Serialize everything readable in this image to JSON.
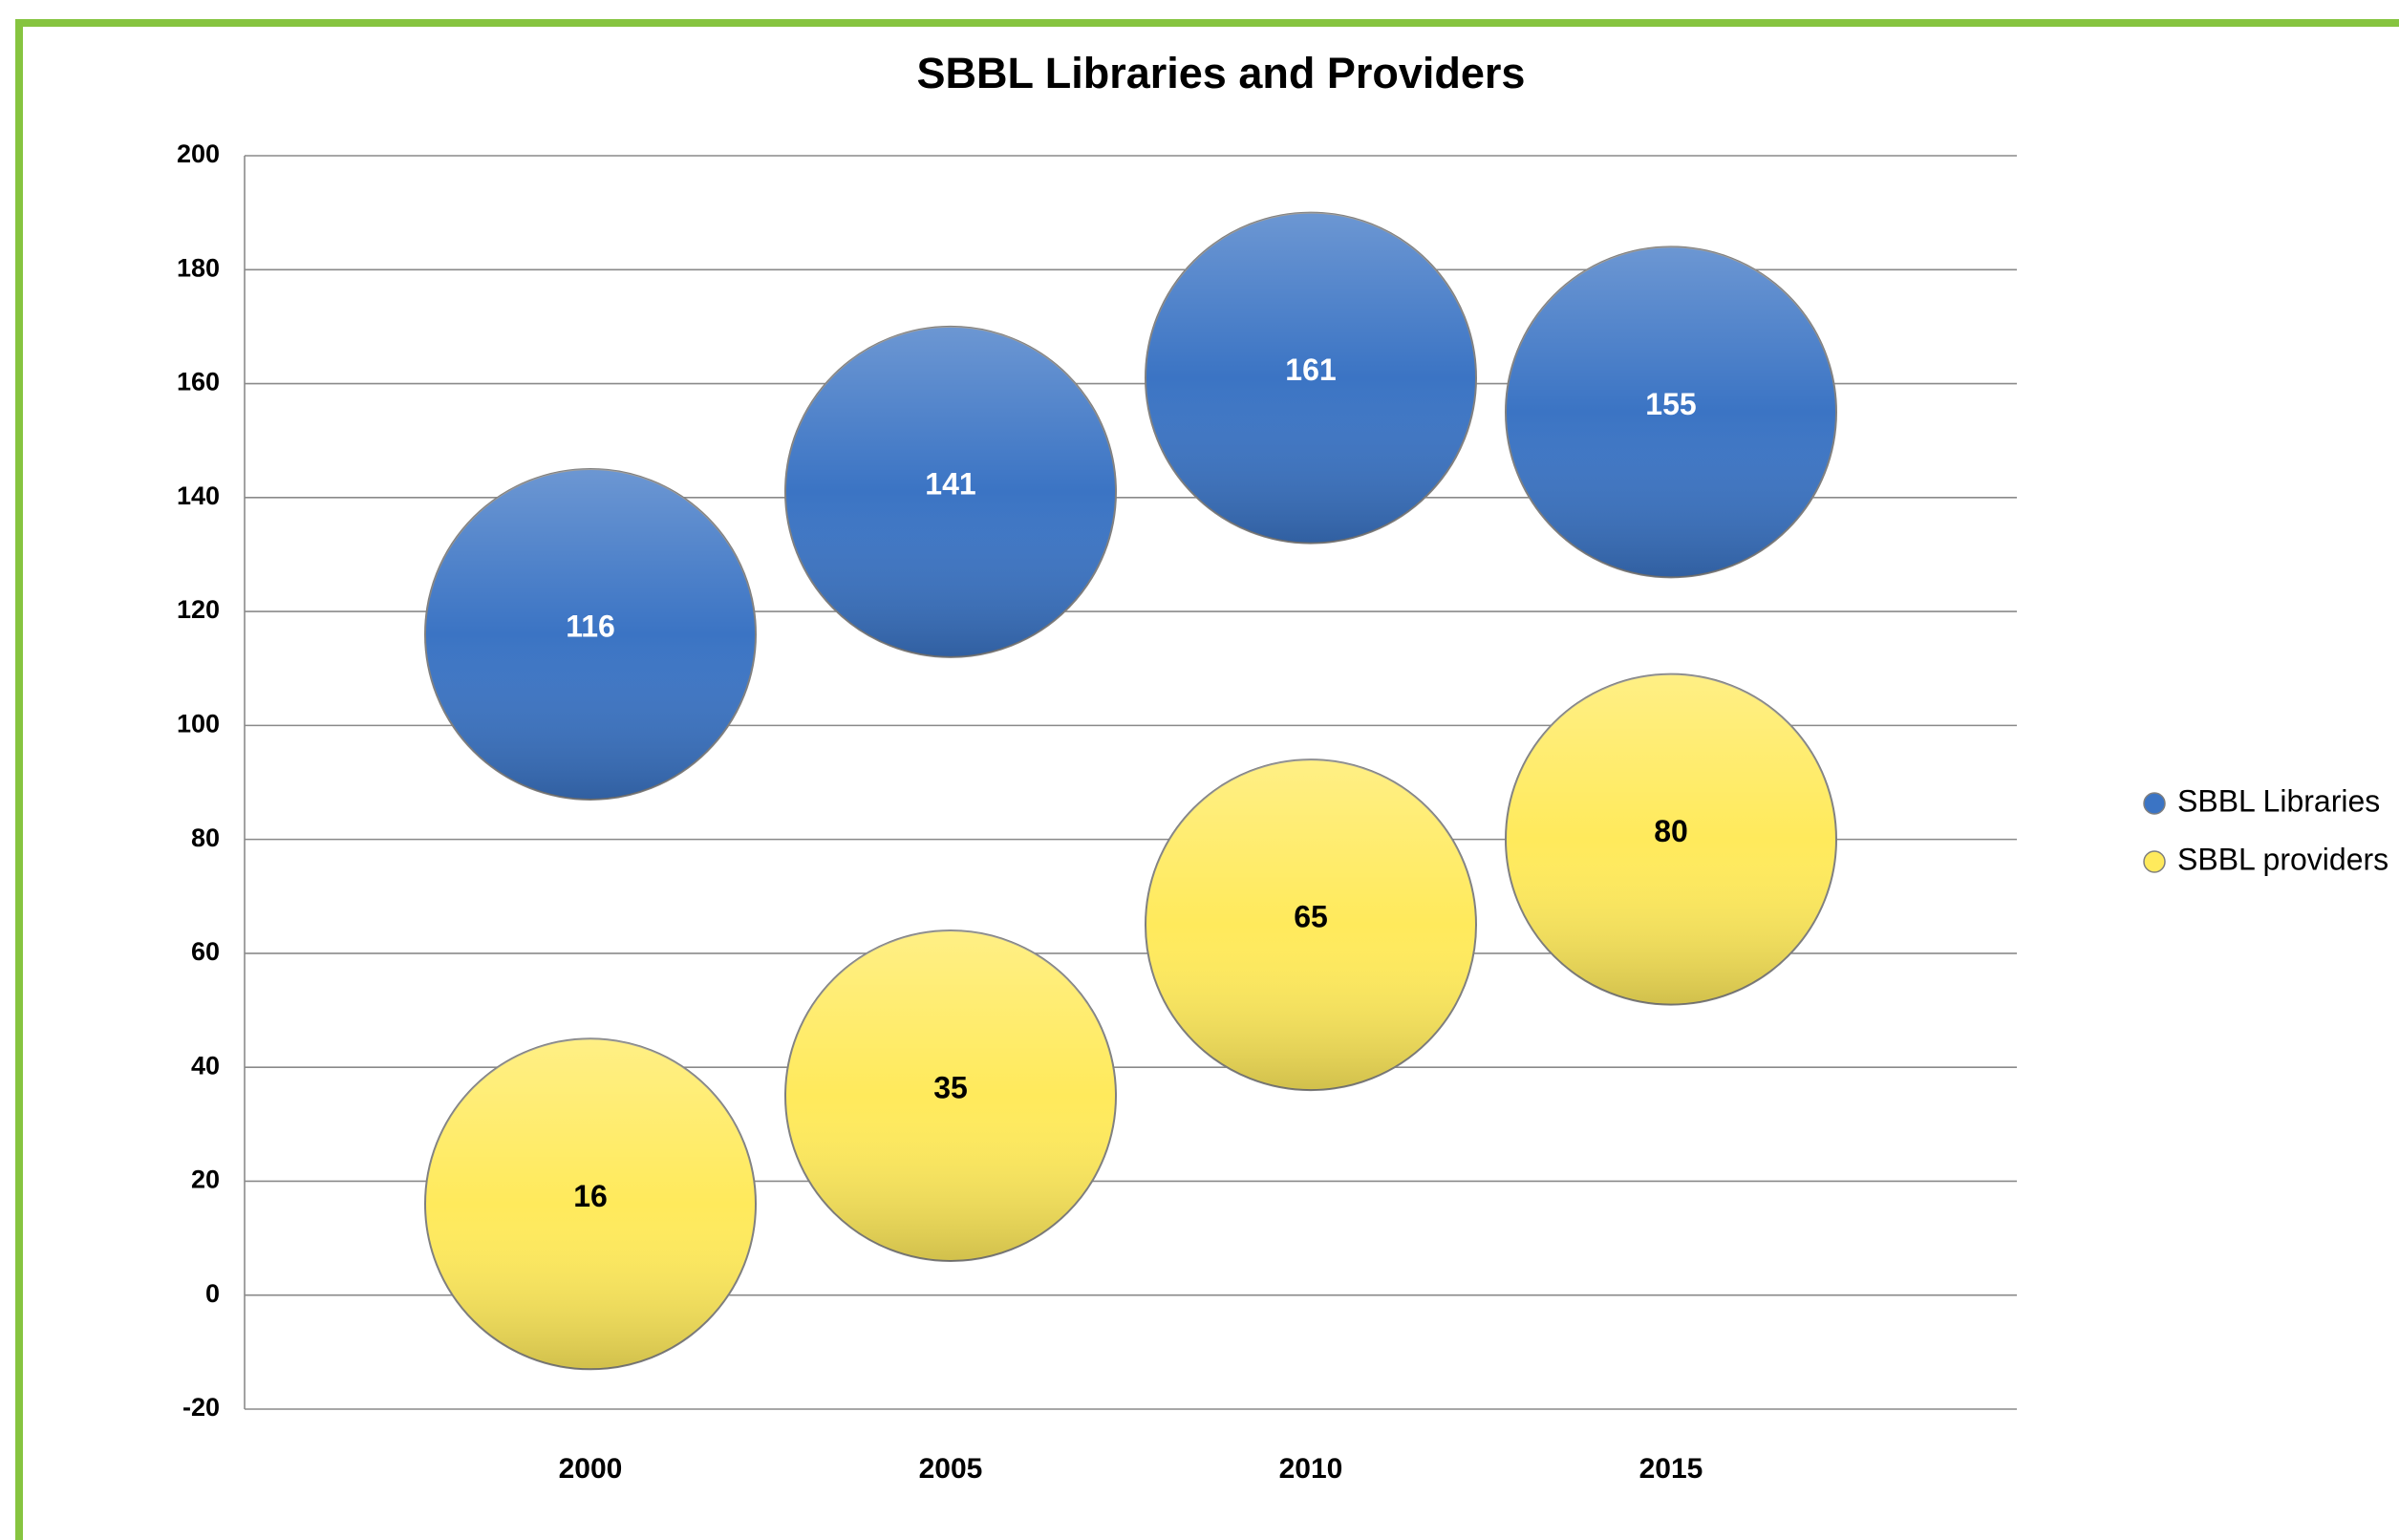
{
  "chart_data": {
    "type": "bubble",
    "title": "SBBL Libraries and Providers",
    "categories": [
      "2000",
      "2005",
      "2010",
      "2015"
    ],
    "series": [
      {
        "name": "SBBL Libraries",
        "color": "#3b74c4",
        "values": [
          116,
          141,
          161,
          155
        ]
      },
      {
        "name": "SBBL providers",
        "color": "#ffea5c",
        "values": [
          16,
          35,
          65,
          80
        ]
      }
    ],
    "ylim": [
      -20,
      200
    ],
    "yticks": [
      -20,
      0,
      20,
      40,
      60,
      80,
      100,
      120,
      140,
      160,
      180,
      200
    ],
    "grid": true,
    "legend": "right"
  }
}
